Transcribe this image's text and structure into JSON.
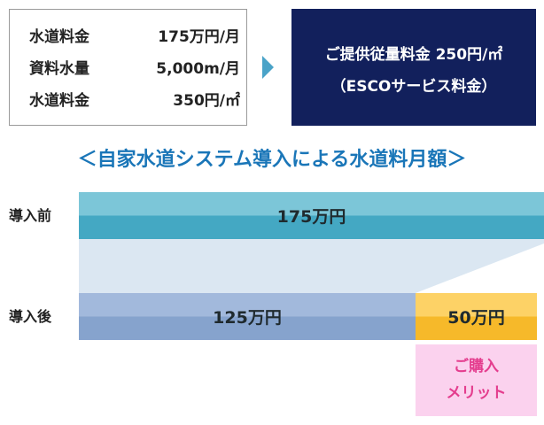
{
  "info_box": {
    "rows": [
      {
        "label": "水道料金",
        "value": "175万円/月"
      },
      {
        "label": "資料水量",
        "value": "5,000m/月"
      },
      {
        "label": "水道料金",
        "value": "350円/㎡"
      }
    ]
  },
  "service_box": {
    "line1": "ご提供従量料金 250円/㎡",
    "line2": "（ESCOサービス料金）"
  },
  "heading": "＜自家水道システム導入による水道料月額＞",
  "comparison": {
    "before": {
      "label": "導入前",
      "amount": "175万円"
    },
    "after": {
      "label": "導入後",
      "amount": "125万円",
      "saving": "50万円"
    },
    "merit": {
      "line1": "ご購入",
      "line2": "メリット"
    }
  },
  "colors": {
    "service_bg": "#12205c",
    "heading": "#1a76b8",
    "before_bar": "#44a8c3",
    "after_bar": "#86a3cd",
    "saving_bar": "#f6b92a",
    "merit_bg": "#fbd2ee",
    "merit_text": "#e43d8e"
  }
}
